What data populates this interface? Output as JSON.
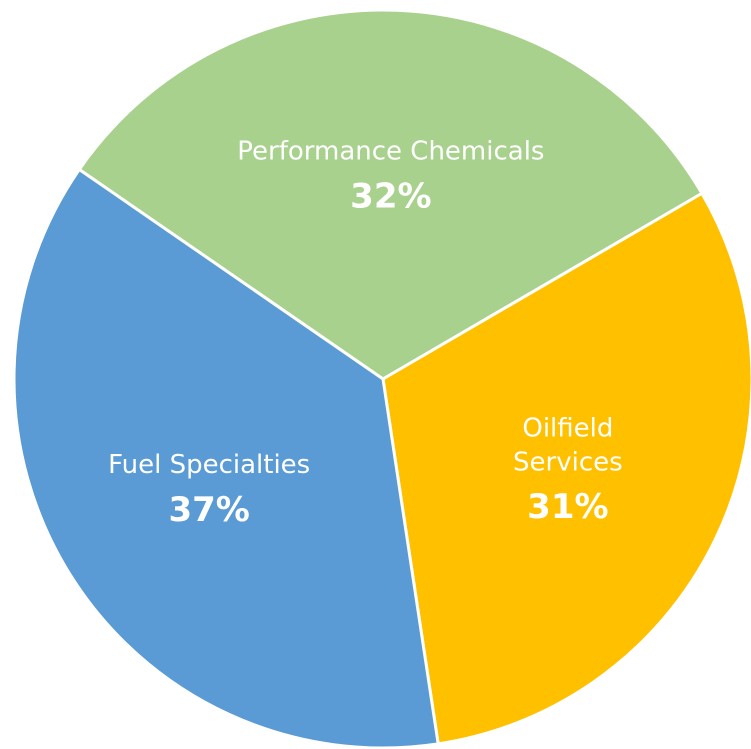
{
  "chart_data": {
    "type": "pie",
    "categories": [
      "Performance Chemicals",
      "Oilfield Services",
      "Fuel Specialties"
    ],
    "values": [
      32,
      31,
      37
    ],
    "value_labels": [
      "32%",
      "31%",
      "37%"
    ],
    "colors": [
      "#a9d18e",
      "#ffc000",
      "#5b9bd5"
    ]
  }
}
